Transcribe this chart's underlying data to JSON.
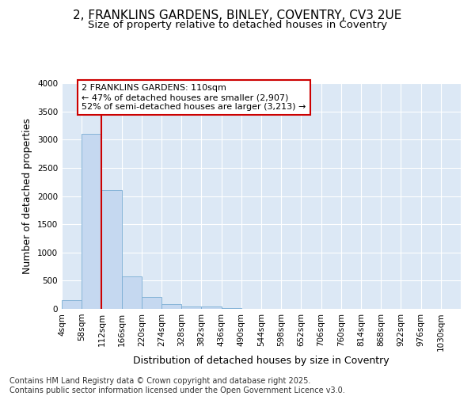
{
  "title1": "2, FRANKLINS GARDENS, BINLEY, COVENTRY, CV3 2UE",
  "title2": "Size of property relative to detached houses in Coventry",
  "xlabel": "Distribution of detached houses by size in Coventry",
  "ylabel": "Number of detached properties",
  "bin_edges": [
    4,
    58,
    112,
    166,
    220,
    274,
    328,
    382,
    436,
    490,
    544,
    598,
    652,
    706,
    760,
    814,
    868,
    922,
    976,
    1030,
    1084
  ],
  "counts": [
    150,
    3100,
    2100,
    580,
    215,
    80,
    40,
    45,
    10,
    0,
    0,
    0,
    0,
    0,
    0,
    0,
    0,
    0,
    0,
    0
  ],
  "bar_color": "#c5d8f0",
  "bar_edge_color": "#7aadd4",
  "vline_x": 112,
  "vline_color": "#cc0000",
  "annotation_text": "2 FRANKLINS GARDENS: 110sqm\n← 47% of detached houses are smaller (2,907)\n52% of semi-detached houses are larger (3,213) →",
  "annotation_box_facecolor": "#ffffff",
  "annotation_box_edgecolor": "#cc0000",
  "ylim": [
    0,
    4000
  ],
  "yticks": [
    0,
    500,
    1000,
    1500,
    2000,
    2500,
    3000,
    3500,
    4000
  ],
  "plot_bg_color": "#dce8f5",
  "figure_bg_color": "#ffffff",
  "grid_color": "#ffffff",
  "footer_text": "Contains HM Land Registry data © Crown copyright and database right 2025.\nContains public sector information licensed under the Open Government Licence v3.0.",
  "title1_fontsize": 11,
  "title2_fontsize": 9.5,
  "axis_label_fontsize": 9,
  "tick_fontsize": 7.5,
  "annotation_fontsize": 8,
  "footer_fontsize": 7
}
